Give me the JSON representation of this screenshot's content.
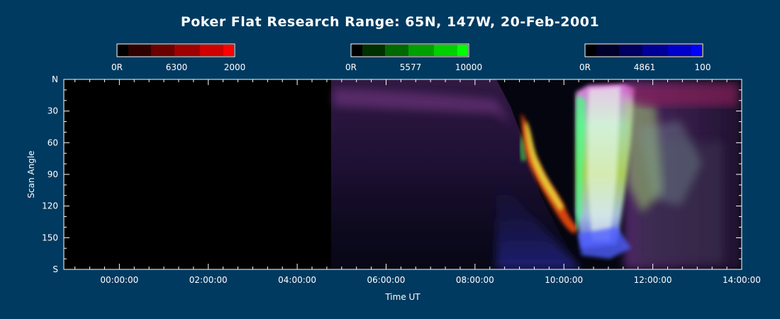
{
  "chart_data": {
    "type": "heatmap",
    "title": "Poker Flat Research Range: 65N, 147W, 20-Feb-2001",
    "xlabel": "Time UT",
    "ylabel": "Scan Angle",
    "x_range_hours": [
      -1.25,
      14.0
    ],
    "y_range": [
      0,
      180
    ],
    "x_ticks": [
      {
        "label": "00:00:00",
        "hours": 0
      },
      {
        "label": "02:00:00",
        "hours": 2
      },
      {
        "label": "04:00:00",
        "hours": 4
      },
      {
        "label": "06:00:00",
        "hours": 6
      },
      {
        "label": "08:00:00",
        "hours": 8
      },
      {
        "label": "10:00:00",
        "hours": 10
      },
      {
        "label": "12:00:00",
        "hours": 12
      },
      {
        "label": "14:00:00",
        "hours": 14
      }
    ],
    "y_ticks": [
      {
        "label": "N",
        "value": 0
      },
      {
        "label": "30",
        "value": 30
      },
      {
        "label": "60",
        "value": 60
      },
      {
        "label": "90",
        "value": 90
      },
      {
        "label": "120",
        "value": 120
      },
      {
        "label": "150",
        "value": 150
      },
      {
        "label": "S",
        "value": 180
      }
    ],
    "data_start_hours": 5.0,
    "colorbars": [
      {
        "name": "red-6300",
        "min_label": "0R",
        "mid_label": "6300",
        "max_label": "2000",
        "color": "#ff0000"
      },
      {
        "name": "green-5577",
        "min_label": "0R",
        "mid_label": "5577",
        "max_label": "10000",
        "color": "#00ff00"
      },
      {
        "name": "blue-4861",
        "min_label": "0R",
        "mid_label": "4861",
        "max_label": "100",
        "color": "#0000ff"
      }
    ],
    "grid": false
  }
}
